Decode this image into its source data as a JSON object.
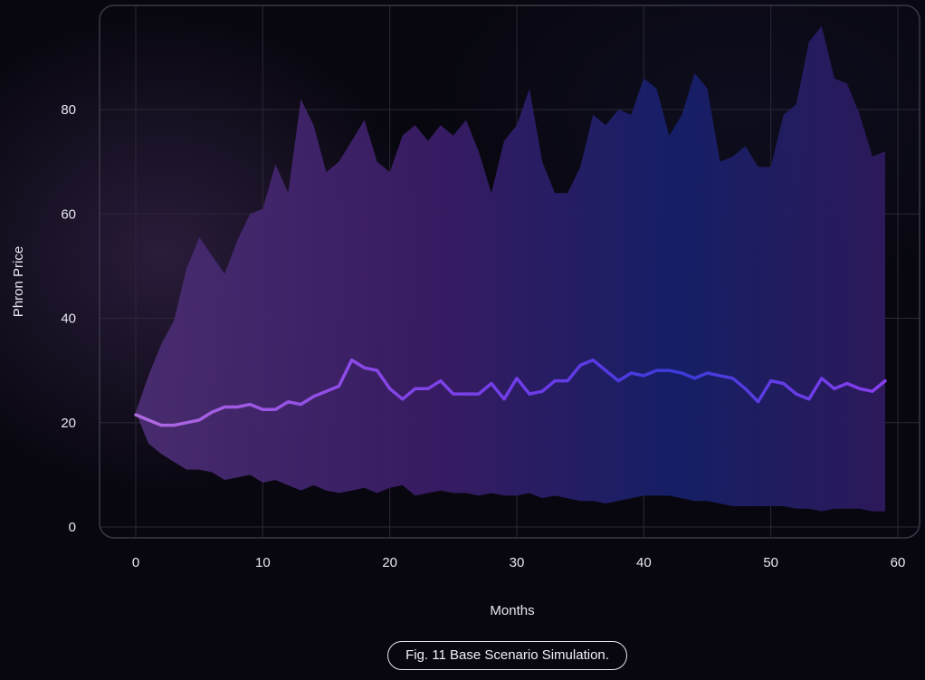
{
  "caption": "Fig. 11 Base Scenario Simulation.",
  "chart_data": {
    "type": "area",
    "title": "",
    "xlabel": "Months",
    "ylabel": "Phron Price",
    "xlim": [
      -1,
      60
    ],
    "ylim": [
      -2,
      100
    ],
    "x_ticks": [
      0,
      10,
      20,
      30,
      40,
      50,
      60
    ],
    "y_ticks": [
      0,
      20,
      40,
      60,
      80
    ],
    "grid": true,
    "legend": "none",
    "colors": {
      "line_start": "#b06ae0",
      "line_mid": "#7a3fe0",
      "line_blue": "#3a3ad8",
      "band_purple": "#4a2d72",
      "band_blue": "#16206a",
      "band_violet": "#2e1a5e"
    },
    "x": [
      0,
      1,
      2,
      3,
      4,
      5,
      6,
      7,
      8,
      9,
      10,
      11,
      12,
      13,
      14,
      15,
      16,
      17,
      18,
      19,
      20,
      21,
      22,
      23,
      24,
      25,
      26,
      27,
      28,
      29,
      30,
      31,
      32,
      33,
      34,
      35,
      36,
      37,
      38,
      39,
      40,
      41,
      42,
      43,
      44,
      45,
      46,
      47,
      48,
      49,
      50,
      51,
      52,
      53,
      54,
      55,
      56,
      57,
      58,
      59
    ],
    "series": [
      {
        "role": "upper-band",
        "values": [
          22,
          29,
          35,
          39.5,
          49.5,
          55.5,
          52,
          48.5,
          55,
          60,
          61,
          69.5,
          64,
          82,
          77,
          68,
          70,
          74,
          78,
          70,
          68,
          75,
          77,
          74,
          77,
          75,
          78,
          72,
          64,
          74,
          77,
          84,
          70,
          64,
          64,
          69,
          79,
          77,
          80,
          79,
          86,
          84,
          75,
          79,
          87,
          84,
          70,
          71,
          73,
          69,
          69,
          79,
          81,
          93,
          96,
          86,
          85,
          79,
          71,
          72
        ]
      },
      {
        "role": "lower-band",
        "values": [
          22,
          16,
          14,
          12.5,
          11,
          11,
          10.5,
          9,
          9.5,
          10,
          8.5,
          9,
          8,
          7,
          8,
          7,
          6.5,
          7,
          7.5,
          6.5,
          7.5,
          8,
          6,
          6.5,
          7,
          6.5,
          6.5,
          6,
          6.5,
          6,
          6,
          6.5,
          5.5,
          6,
          5.5,
          5,
          5,
          4.5,
          5,
          5.5,
          6,
          6,
          6,
          5.5,
          5,
          5,
          4.5,
          4,
          4,
          4,
          4,
          4,
          3.5,
          3.5,
          3,
          3.5,
          3.5,
          3.5,
          3,
          3
        ]
      },
      {
        "role": "median",
        "values": [
          21.5,
          20.5,
          19.5,
          19.5,
          20,
          20.5,
          22,
          23,
          23,
          23.5,
          22.5,
          22.5,
          24,
          23.5,
          25,
          26,
          27,
          32,
          30.5,
          30,
          26.5,
          24.5,
          26.5,
          26.5,
          28,
          25.5,
          25.5,
          25.5,
          27.5,
          24.5,
          28.5,
          25.5,
          26,
          28,
          28,
          31,
          32,
          30,
          28,
          29.5,
          29,
          30,
          30,
          29.5,
          28.5,
          29.5,
          29,
          28.5,
          26.5,
          24,
          28,
          27.5,
          25.5,
          24.5,
          28.5,
          26.5,
          27.5,
          26.5,
          26,
          28
        ]
      }
    ]
  }
}
